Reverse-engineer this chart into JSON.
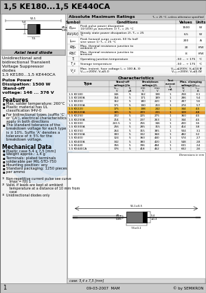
{
  "title": "1,5 KE180...1,5 KE440CA",
  "axial_label": "Axial lead diode",
  "subtitle_lines": [
    "Unidirectional and",
    "bidirectional Transient",
    "Voltage Suppressor",
    "diodes",
    "1,5 KE180...1,5 KE440CA"
  ],
  "pulse_power": "Pulse Power",
  "dissipation": "Dissipation: 1500 W",
  "standoff": "Stand-off",
  "voltage_range": "voltage: 146 ... 376 V",
  "features_title": "Features",
  "features": [
    [
      "bullet",
      "Max. solder temperature: 260°C"
    ],
    [
      "bullet",
      "Plastic material has UL"
    ],
    [
      "cont",
      "classification 94V-0"
    ],
    [
      "bullet",
      "For bidirectional types (suffix ‘C’"
    ],
    [
      "cont",
      "or ‘CA’), electrical characteristics"
    ],
    [
      "cont",
      "apply in both directions"
    ],
    [
      "bullet",
      "The standard tolerance of the"
    ],
    [
      "cont",
      "breakdown voltage for each type"
    ],
    [
      "cont",
      "is ± 10%. Suffix ‘A’ denotes a"
    ],
    [
      "cont",
      "tolerance of ± 5% for the"
    ],
    [
      "cont",
      "breakdown voltage."
    ]
  ],
  "mech_title": "Mechanical Data",
  "mech_data": [
    "Plastic case 5,4 x 7,5 [mm]",
    "Weight approx.: 1,4 g",
    "Terminals: plated terminals",
    "solderable per MIL-STD-750",
    "Mounting position: any",
    "Standard packaging: 1250 pieces",
    "per ammo"
  ],
  "footnotes": [
    [
      "super",
      "1)",
      "Non-repetitive current pulse see curve"
    ],
    [
      "cont",
      "",
      "   Imax = f(t) 1"
    ],
    [
      "super",
      "2)",
      "Valid, if leads are kept at ambient"
    ],
    [
      "cont",
      "",
      "   temperature at a distance of 10 mm from"
    ],
    [
      "cont",
      "",
      "   case"
    ],
    [
      "super",
      "3)",
      "Unidirectional diodes only"
    ]
  ],
  "abs_max_title": "Absolute Maximum Ratings",
  "temp_condition": "Tₐ = 25 °C, unless otherwise specified",
  "abs_max_rows": [
    [
      "Pₚₚₐₓ",
      "Peak pulse power dissipation",
      "1500",
      "W",
      "10/1000 μs waveform 1) Tₐ = 25 °C",
      ""
    ],
    [
      "PₐV(AV)",
      "Steady state power dissipation 2), Tₐ = 25",
      "6.5",
      "W",
      "°C",
      ""
    ],
    [
      "Iₚₚₐₓ",
      "Peak forward surge current, 60 Hz half",
      "200",
      "A",
      "sine wave 1) Tₐ = 25 °C",
      ""
    ],
    [
      "RθJₐ",
      "Max. thermal resistance junction to",
      "20",
      "K/W",
      "ambient 2)",
      ""
    ],
    [
      "RθJC",
      "Max. thermal resistance junction to",
      "8",
      "K/W",
      "terminal",
      ""
    ],
    [
      "Tⱼ",
      "Operating junction temperature",
      "-50 ... + 175",
      "°C",
      "",
      ""
    ],
    [
      "T_s",
      "Storage temperature",
      "-50 ... + 175",
      "°C",
      "",
      ""
    ],
    [
      "V_c",
      "Max. instent. fuse voltage Iₚ = 100 A, 3)",
      "Vₚₚₓ≤200V, Vₐ≤14.5",
      "V",
      "",
      ""
    ],
    [
      "",
      "",
      "Vₚₚₓ>200V, Vₐ≤5.0",
      "V",
      "",
      ""
    ]
  ],
  "char_title": "Characteristics",
  "char_rows": [
    [
      "1,5 KE180",
      "146",
      "5",
      "162",
      "198",
      "1",
      "258",
      "6.1"
    ],
    [
      "1,5 KE180A",
      "154",
      "5",
      "171",
      "189",
      "1",
      "286",
      "5.4"
    ],
    [
      "1,5 KE200",
      "162",
      "5",
      "180",
      "220",
      "1",
      "287",
      "5.6"
    ],
    [
      "1,5 KE200A",
      "171",
      "5",
      "190",
      "210",
      "1",
      "274",
      "5.7"
    ],
    [
      "1,5 KE220",
      "175",
      "5",
      "198",
      "242",
      "1",
      "344",
      "4.5"
    ],
    [
      "1,5 KE220A",
      "185",
      "5",
      "209",
      "231",
      "1",
      "328",
      "4.8"
    ],
    [
      "1,5 KE250",
      "202",
      "5",
      "225",
      "275",
      "1",
      "360",
      "4.5"
    ],
    [
      "1,5 KE250A",
      "214",
      "5",
      "237",
      "263",
      "1",
      "344",
      "4.5"
    ],
    [
      "1,5 KE300",
      "243.5",
      "1",
      "256",
      "346",
      "1",
      "430",
      "3.6"
    ],
    [
      "1,5 KE300A",
      "256",
      "5",
      "285",
      "315",
      "1",
      "414",
      "3.8"
    ],
    [
      "1,5 KE350",
      "264",
      "5",
      "315",
      "385",
      "1",
      "504",
      "3.1"
    ],
    [
      "1,5 KE350A",
      "300",
      "5",
      "332",
      "368",
      "1",
      "482",
      "3.2"
    ],
    [
      "1,5 KE400",
      "324",
      "5",
      "360",
      "440",
      "1",
      "574",
      "2.7"
    ],
    [
      "1,5 KE400A",
      "342",
      "5",
      "380",
      "420",
      "1",
      "548",
      "2.8"
    ],
    [
      "1,5 KE440",
      "356",
      "5",
      "396",
      "484",
      "1",
      "631",
      "2.4"
    ],
    [
      "1,5 KE440CA",
      "376",
      "5",
      "418",
      "462",
      "1",
      "602",
      "2.6"
    ]
  ],
  "highlight_rows": [
    4,
    5
  ],
  "dim_label": "Dimensions in mm",
  "case_label": "case: 5,4 x 7,5 [mm]",
  "footer_page": "1",
  "footer_date": "09-03-2007  MAM",
  "footer_copy": "© by SEMIKRON",
  "colors": {
    "title_bar": "#b8b8b8",
    "content_bg": "#ffffff",
    "left_bg": "#f0f0f0",
    "table_header": "#c8c8c8",
    "table_subheader": "#e0e0e0",
    "row_odd": "#f8f8f8",
    "row_even": "#ffffff",
    "highlight": "#f5c842",
    "highlight2": "#e8a020",
    "footer_bg": "#c8c8c8",
    "diode_box_bg": "#e8e8e8",
    "axial_label_bg": "#c0c0c0",
    "grid_line": "#999999",
    "blue1": "#b8d4ee",
    "blue2": "#9bbedd"
  }
}
